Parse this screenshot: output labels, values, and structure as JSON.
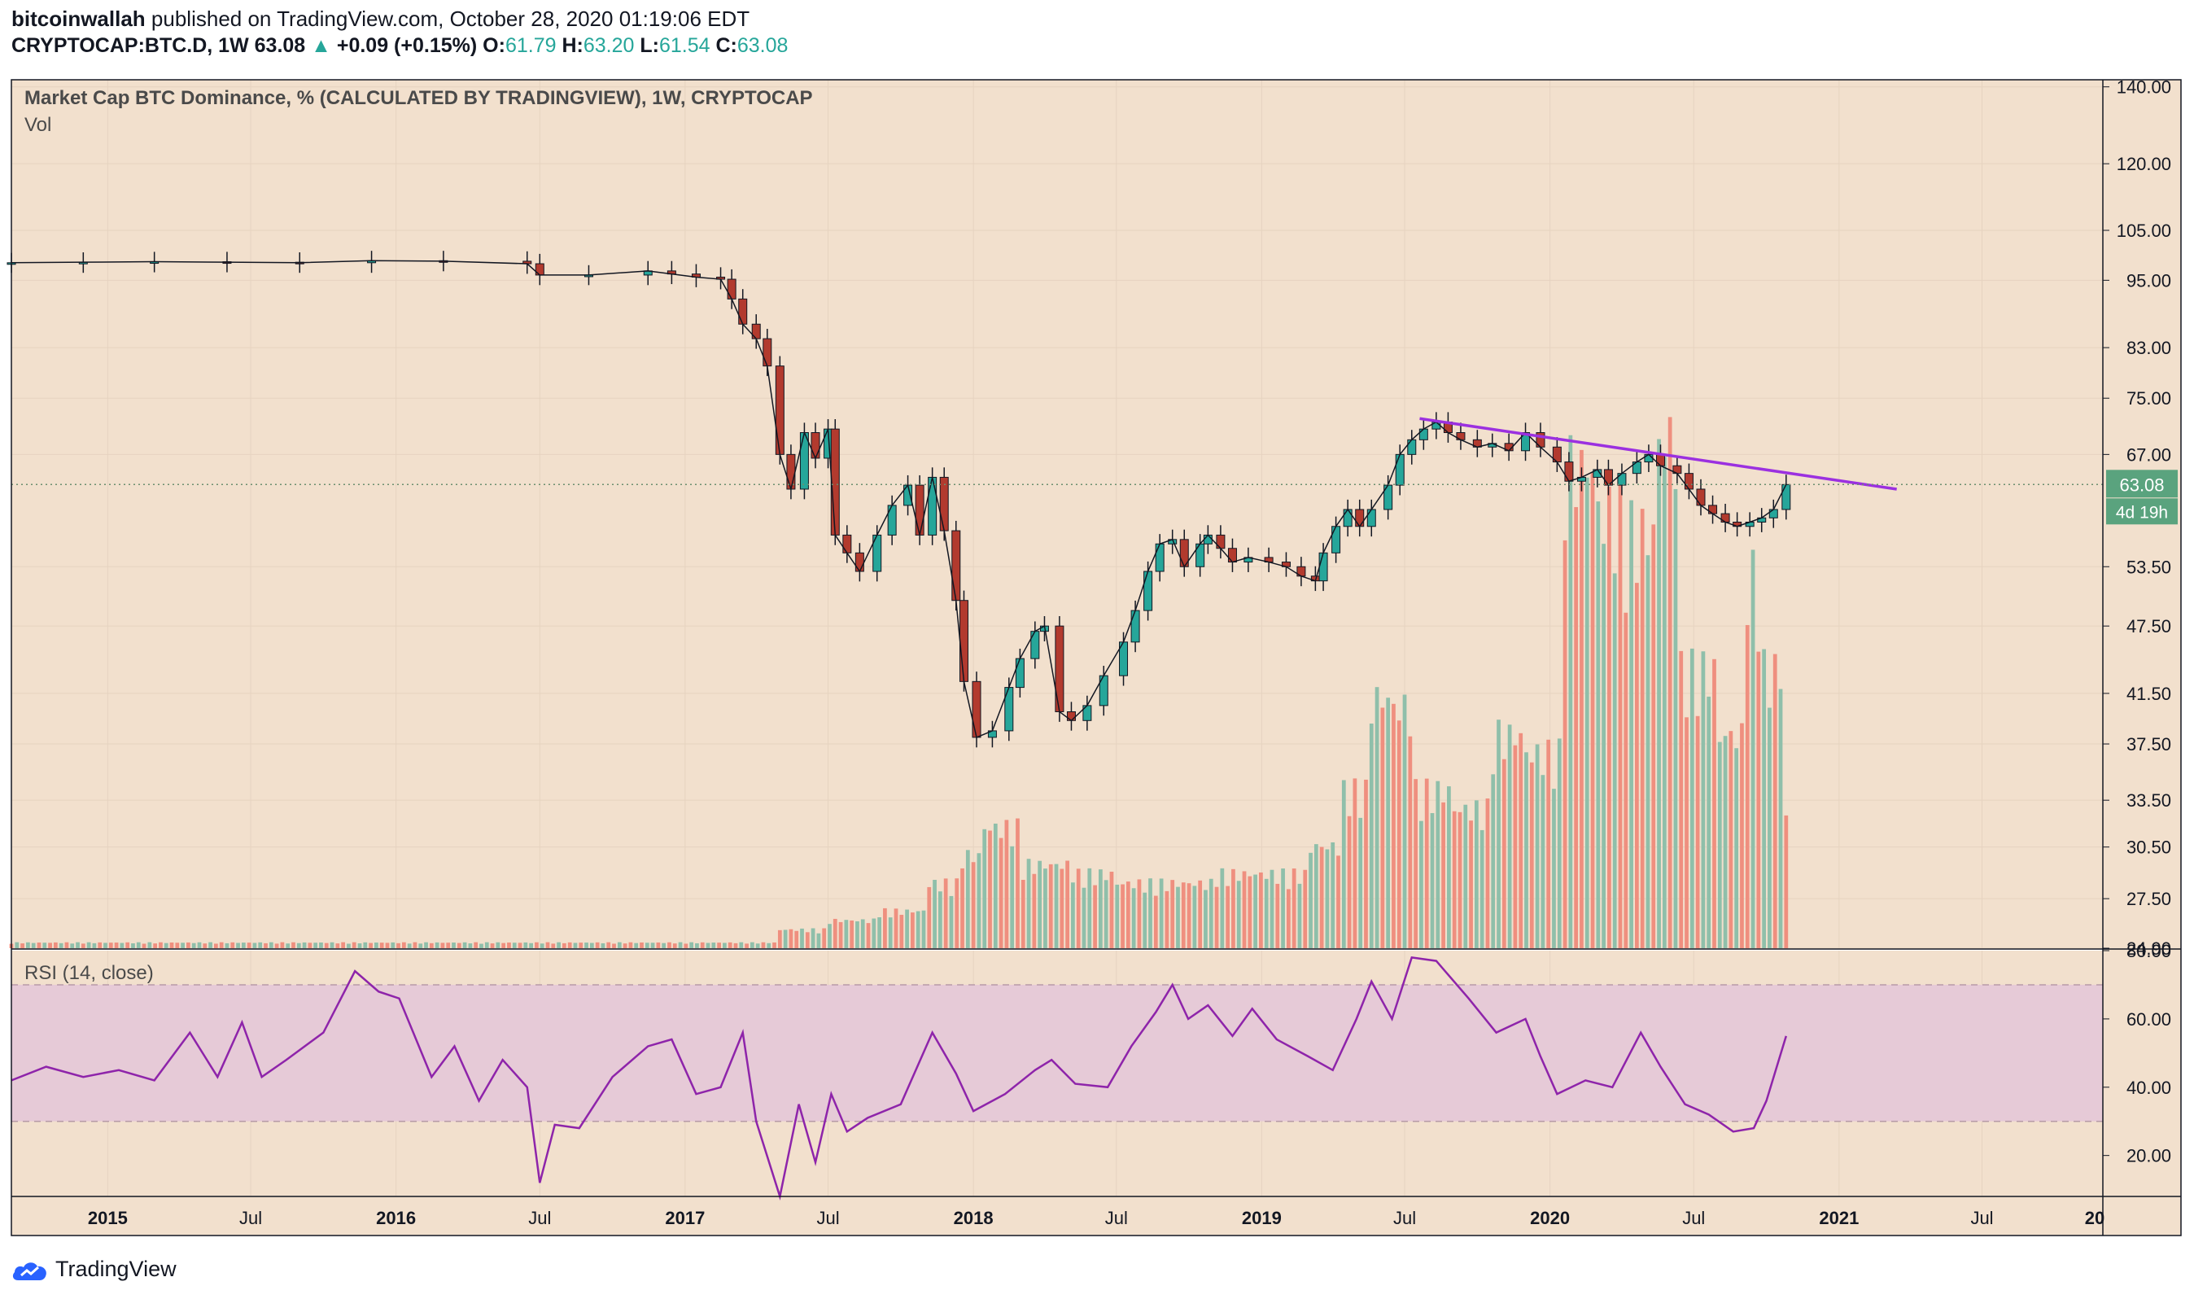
{
  "header": {
    "user": "bitcoinwallah",
    "published": "published on TradingView.com, October 28, 2020 01:19:06 EDT",
    "symbol": "CRYPTOCAP:BTC.D, 1W",
    "last": "63.08",
    "arrow": "▲",
    "change": "+0.09 (+0.15%)",
    "o_label": "O:",
    "o": "61.79",
    "h_label": "H:",
    "h": "63.20",
    "l_label": "L:",
    "l": "61.54",
    "c_label": "C:",
    "c": "63.08"
  },
  "colors": {
    "background": "#f2e0cd",
    "up": "#26a69a",
    "down": "#b23a2e",
    "up_vol": "#8fbfaa",
    "down_vol": "#ef8f7f",
    "rsi_line": "#8e24aa",
    "rsi_band": "#e6cad7",
    "trendline": "#9b30e0",
    "price_tag": "#5aa37e"
  },
  "brand": "TradingView",
  "chart_data": [
    {
      "type": "candlestick",
      "title": "Market Cap BTC Dominance, % (CALCULATED BY TRADINGVIEW), 1W, CRYPTOCAP",
      "sub_label": "Vol",
      "scale": "log",
      "ylim": [
        24.9,
        142
      ],
      "y_ticks": [
        "140.00",
        "120.00",
        "105.00",
        "95.00",
        "83.00",
        "75.00",
        "67.00",
        "53.50",
        "47.50",
        "41.50",
        "37.50",
        "33.50",
        "30.50",
        "27.50",
        "24.90"
      ],
      "last_price_label": "63.08",
      "countdown_label": "4d 19h",
      "x_ticks": [
        "2015",
        "Jul",
        "2016",
        "Jul",
        "2017",
        "Jul",
        "2018",
        "Jul",
        "2019",
        "Jul",
        "2020",
        "Jul",
        "2021",
        "Jul",
        "20"
      ],
      "x_range": [
        "2014-09",
        "2021-12"
      ],
      "series": [
        {
          "name": "",
          "kind": "weekly close (approx.)",
          "points": [
            [
              "2014-09-01",
              98.4
            ],
            [
              "2014-12-01",
              98.5
            ],
            [
              "2015-03-01",
              98.6
            ],
            [
              "2015-06-01",
              98.5
            ],
            [
              "2015-09-01",
              98.4
            ],
            [
              "2015-12-01",
              98.8
            ],
            [
              "2016-03-01",
              98.7
            ],
            [
              "2016-06-15",
              98.2
            ],
            [
              "2016-07-01",
              96.0
            ],
            [
              "2016-09-01",
              96.0
            ],
            [
              "2016-11-15",
              96.8
            ],
            [
              "2016-12-15",
              96.2
            ],
            [
              "2017-01-15",
              95.6
            ],
            [
              "2017-02-15",
              95.2
            ],
            [
              "2017-03-01",
              91.5
            ],
            [
              "2017-03-15",
              87.0
            ],
            [
              "2017-04-01",
              84.5
            ],
            [
              "2017-04-15",
              80.0
            ],
            [
              "2017-05-01",
              67.0
            ],
            [
              "2017-05-15",
              62.5
            ],
            [
              "2017-06-01",
              70.0
            ],
            [
              "2017-06-15",
              66.5
            ],
            [
              "2017-07-01",
              70.5
            ],
            [
              "2017-07-10",
              57.0
            ],
            [
              "2017-07-25",
              55.0
            ],
            [
              "2017-08-10",
              53.0
            ],
            [
              "2017-09-01",
              57.0
            ],
            [
              "2017-09-20",
              60.5
            ],
            [
              "2017-10-10",
              63.0
            ],
            [
              "2017-10-25",
              57.0
            ],
            [
              "2017-11-10",
              64.0
            ],
            [
              "2017-11-25",
              57.5
            ],
            [
              "2017-12-10",
              50.0
            ],
            [
              "2017-12-20",
              42.5
            ],
            [
              "2018-01-05",
              38.0
            ],
            [
              "2018-01-25",
              38.5
            ],
            [
              "2018-02-15",
              42.0
            ],
            [
              "2018-03-01",
              44.5
            ],
            [
              "2018-03-20",
              47.0
            ],
            [
              "2018-04-01",
              47.5
            ],
            [
              "2018-04-20",
              40.0
            ],
            [
              "2018-05-05",
              39.3
            ],
            [
              "2018-05-25",
              40.5
            ],
            [
              "2018-06-15",
              43.0
            ],
            [
              "2018-07-10",
              46.0
            ],
            [
              "2018-07-25",
              49.0
            ],
            [
              "2018-08-10",
              53.0
            ],
            [
              "2018-08-25",
              56.0
            ],
            [
              "2018-09-10",
              56.5
            ],
            [
              "2018-09-25",
              53.5
            ],
            [
              "2018-10-15",
              56.0
            ],
            [
              "2018-10-25",
              57.0
            ],
            [
              "2018-11-10",
              55.5
            ],
            [
              "2018-11-25",
              54.0
            ],
            [
              "2018-12-15",
              54.5
            ],
            [
              "2019-01-10",
              54.0
            ],
            [
              "2019-02-01",
              53.5
            ],
            [
              "2019-02-20",
              52.5
            ],
            [
              "2019-03-10",
              52.0
            ],
            [
              "2019-03-20",
              55.0
            ],
            [
              "2019-04-05",
              58.0
            ],
            [
              "2019-04-20",
              60.0
            ],
            [
              "2019-05-05",
              58.0
            ],
            [
              "2019-05-20",
              60.0
            ],
            [
              "2019-06-10",
              63.0
            ],
            [
              "2019-06-25",
              67.0
            ],
            [
              "2019-07-10",
              69.0
            ],
            [
              "2019-07-25",
              70.5
            ],
            [
              "2019-08-10",
              71.5
            ],
            [
              "2019-08-25",
              70.0
            ],
            [
              "2019-09-10",
              69.0
            ],
            [
              "2019-10-01",
              68.0
            ],
            [
              "2019-10-20",
              68.5
            ],
            [
              "2019-11-10",
              67.5
            ],
            [
              "2019-12-01",
              70.0
            ],
            [
              "2019-12-20",
              68.0
            ],
            [
              "2020-01-10",
              66.0
            ],
            [
              "2020-01-25",
              63.5
            ],
            [
              "2020-02-10",
              64.0
            ],
            [
              "2020-03-01",
              65.0
            ],
            [
              "2020-03-15",
              63.0
            ],
            [
              "2020-04-01",
              64.5
            ],
            [
              "2020-04-20",
              66.0
            ],
            [
              "2020-05-05",
              67.0
            ],
            [
              "2020-05-20",
              65.5
            ],
            [
              "2020-06-10",
              64.5
            ],
            [
              "2020-06-25",
              62.5
            ],
            [
              "2020-07-10",
              60.5
            ],
            [
              "2020-07-25",
              59.5
            ],
            [
              "2020-08-10",
              58.5
            ],
            [
              "2020-08-25",
              58.0
            ],
            [
              "2020-09-10",
              58.5
            ],
            [
              "2020-09-25",
              59.0
            ],
            [
              "2020-10-10",
              60.0
            ],
            [
              "2020-10-26",
              63.08
            ]
          ]
        },
        {
          "name": "Trend line",
          "points": [
            [
              "2019-07-20",
              72.0
            ],
            [
              "2021-03-15",
              62.5
            ]
          ]
        }
      ]
    },
    {
      "type": "bar",
      "title": "Vol",
      "note": "relative weekly volume, shown as bars below price",
      "x_range": [
        "2014-09",
        "2021-12"
      ],
      "bars": [
        [
          "2017-05-01",
          0.02
        ],
        [
          "2017-07-01",
          0.03
        ],
        [
          "2017-09-01",
          0.04
        ],
        [
          "2017-11-01",
          0.07
        ],
        [
          "2017-12-15",
          0.1
        ],
        [
          "2018-01-15",
          0.13
        ],
        [
          "2018-03-01",
          0.09
        ],
        [
          "2018-05-01",
          0.08
        ],
        [
          "2018-07-01",
          0.07
        ],
        [
          "2018-09-01",
          0.07
        ],
        [
          "2018-11-01",
          0.08
        ],
        [
          "2019-01-01",
          0.08
        ],
        [
          "2019-03-01",
          0.11
        ],
        [
          "2019-04-15",
          0.17
        ],
        [
          "2019-05-15",
          0.27
        ],
        [
          "2019-06-15",
          0.26
        ],
        [
          "2019-07-15",
          0.17
        ],
        [
          "2019-09-01",
          0.15
        ],
        [
          "2019-10-15",
          0.23
        ],
        [
          "2019-12-01",
          0.21
        ],
        [
          "2020-01-15",
          0.52
        ],
        [
          "2020-03-01",
          0.47
        ],
        [
          "2020-04-01",
          0.45
        ],
        [
          "2020-05-15",
          0.55
        ],
        [
          "2020-06-15",
          0.3
        ],
        [
          "2020-08-01",
          0.23
        ],
        [
          "2020-09-01",
          0.4
        ],
        [
          "2020-09-25",
          0.3
        ],
        [
          "2020-10-26",
          0.14
        ]
      ]
    },
    {
      "type": "line",
      "title": "RSI (14, close)",
      "ylim": [
        8,
        80
      ],
      "y_ticks": [
        "80.00",
        "60.00",
        "40.00",
        "20.00"
      ],
      "bands": [
        30,
        70
      ],
      "x_range": [
        "2014-09",
        "2021-12"
      ],
      "series": [
        {
          "name": "",
          "points": [
            [
              "2014-09-01",
              42
            ],
            [
              "2014-10-15",
              46
            ],
            [
              "2014-12-01",
              43
            ],
            [
              "2015-01-15",
              45
            ],
            [
              "2015-03-01",
              42
            ],
            [
              "2015-04-15",
              56
            ],
            [
              "2015-05-20",
              43
            ],
            [
              "2015-06-20",
              59
            ],
            [
              "2015-07-15",
              43
            ],
            [
              "2015-08-15",
              48
            ],
            [
              "2015-10-01",
              56
            ],
            [
              "2015-11-10",
              74
            ],
            [
              "2015-12-10",
              68
            ],
            [
              "2016-01-05",
              66
            ],
            [
              "2016-02-15",
              43
            ],
            [
              "2016-03-15",
              52
            ],
            [
              "2016-04-15",
              36
            ],
            [
              "2016-05-15",
              48
            ],
            [
              "2016-06-15",
              40
            ],
            [
              "2016-07-01",
              12
            ],
            [
              "2016-07-20",
              29
            ],
            [
              "2016-08-20",
              28
            ],
            [
              "2016-10-01",
              43
            ],
            [
              "2016-11-15",
              52
            ],
            [
              "2016-12-15",
              54
            ],
            [
              "2017-01-15",
              38
            ],
            [
              "2017-02-15",
              40
            ],
            [
              "2017-03-15",
              56
            ],
            [
              "2017-04-01",
              30
            ],
            [
              "2017-05-01",
              8
            ],
            [
              "2017-05-25",
              35
            ],
            [
              "2017-06-15",
              18
            ],
            [
              "2017-07-05",
              38
            ],
            [
              "2017-07-25",
              27
            ],
            [
              "2017-08-20",
              31
            ],
            [
              "2017-10-01",
              35
            ],
            [
              "2017-11-10",
              56
            ],
            [
              "2017-12-10",
              44
            ],
            [
              "2018-01-01",
              33
            ],
            [
              "2018-02-10",
              38
            ],
            [
              "2018-03-20",
              45
            ],
            [
              "2018-04-10",
              48
            ],
            [
              "2018-05-10",
              41
            ],
            [
              "2018-06-20",
              40
            ],
            [
              "2018-07-20",
              52
            ],
            [
              "2018-08-20",
              62
            ],
            [
              "2018-09-10",
              70
            ],
            [
              "2018-09-30",
              60
            ],
            [
              "2018-10-25",
              64
            ],
            [
              "2018-11-25",
              55
            ],
            [
              "2018-12-20",
              63
            ],
            [
              "2019-01-20",
              54
            ],
            [
              "2019-03-01",
              49
            ],
            [
              "2019-04-01",
              45
            ],
            [
              "2019-05-01",
              60
            ],
            [
              "2019-05-20",
              71
            ],
            [
              "2019-06-15",
              60
            ],
            [
              "2019-07-10",
              78
            ],
            [
              "2019-08-10",
              77
            ],
            [
              "2019-09-20",
              66
            ],
            [
              "2019-10-25",
              56
            ],
            [
              "2019-12-01",
              60
            ],
            [
              "2019-12-20",
              49
            ],
            [
              "2020-01-10",
              38
            ],
            [
              "2020-02-15",
              42
            ],
            [
              "2020-03-20",
              40
            ],
            [
              "2020-04-25",
              56
            ],
            [
              "2020-05-20",
              46
            ],
            [
              "2020-06-20",
              35
            ],
            [
              "2020-07-20",
              32
            ],
            [
              "2020-08-20",
              27
            ],
            [
              "2020-09-15",
              28
            ],
            [
              "2020-10-01",
              36
            ],
            [
              "2020-10-26",
              55
            ]
          ]
        }
      ]
    }
  ]
}
